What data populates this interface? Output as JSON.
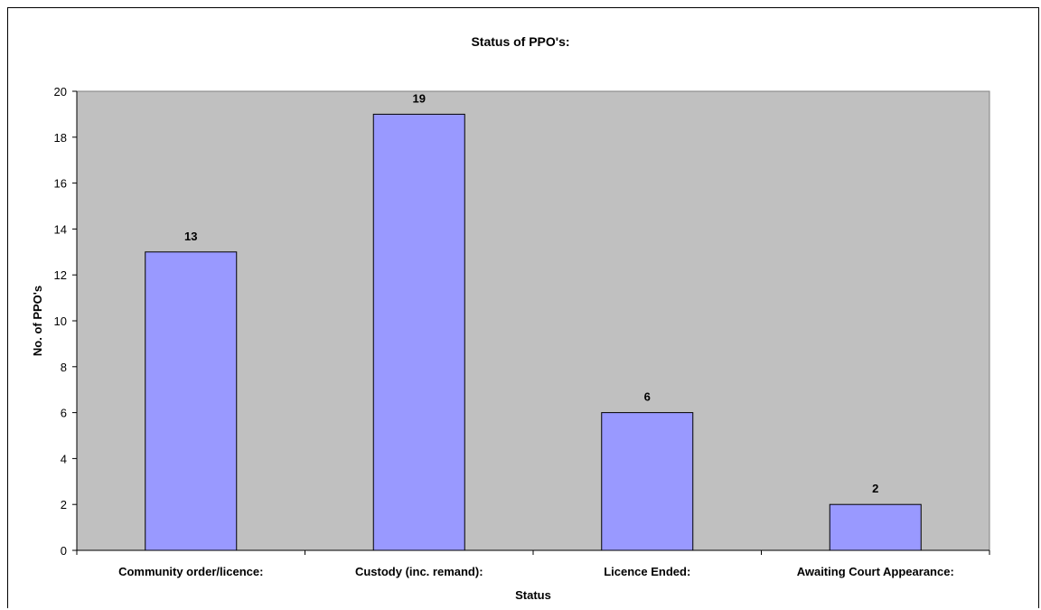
{
  "chart_data": {
    "type": "bar",
    "title": "Status of PPO's:",
    "xlabel": "Status",
    "ylabel": "No. of PPO's",
    "categories": [
      "Community order/licence:",
      "Custody (inc. remand):",
      "Licence Ended:",
      "Awaiting Court Appearance:"
    ],
    "values": [
      13,
      19,
      6,
      2
    ],
    "data_labels": [
      "13",
      "19",
      "6",
      "2"
    ],
    "ylim": [
      0,
      20
    ],
    "yticks": [
      0,
      2,
      4,
      6,
      8,
      10,
      12,
      14,
      16,
      18,
      20
    ],
    "grid": false,
    "legend": "none",
    "colors": {
      "plot_bg": "#c0c0c0",
      "bar_fill": "#9999ff",
      "bar_stroke": "#000000"
    }
  }
}
